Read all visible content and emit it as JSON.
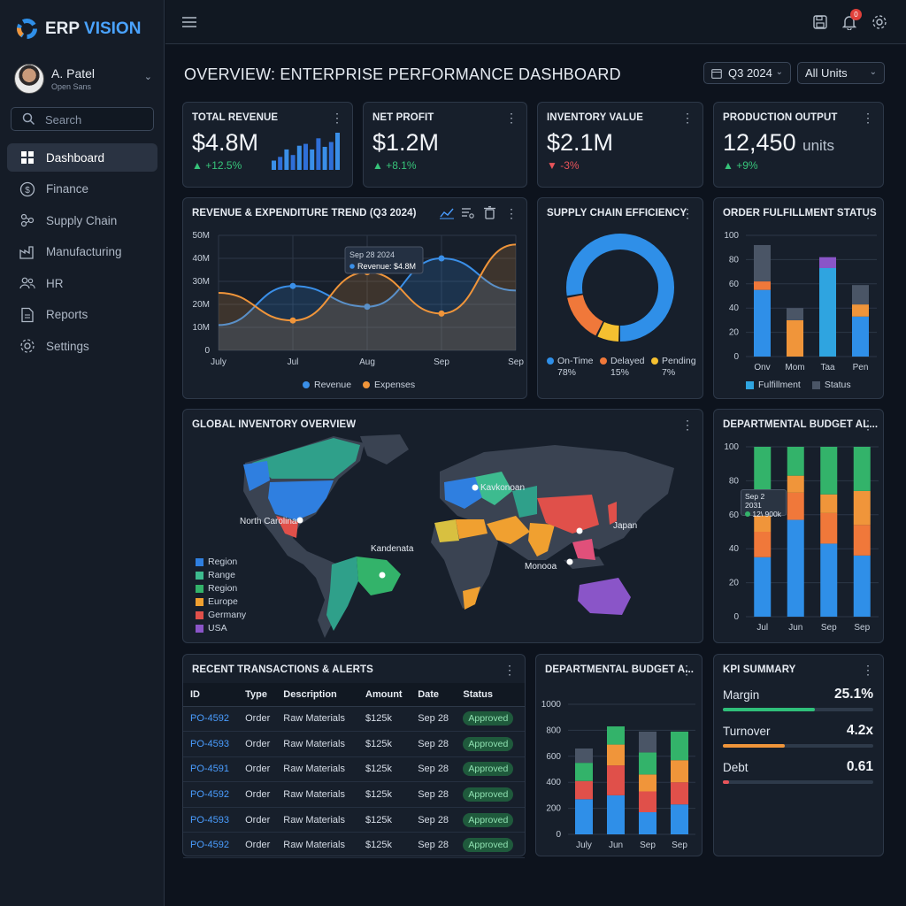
{
  "app": {
    "name_a": "ERP",
    "name_b": "VISION"
  },
  "user": {
    "name": "A. Patel",
    "subtitle": "Open Sans"
  },
  "search": {
    "placeholder": "Search"
  },
  "nav": [
    {
      "label": "Dashboard",
      "icon": "grid-icon",
      "active": true
    },
    {
      "label": "Finance",
      "icon": "dollar-icon",
      "active": false
    },
    {
      "label": "Supply Chain",
      "icon": "network-icon",
      "active": false
    },
    {
      "label": "Manufacturing",
      "icon": "factory-icon",
      "active": false
    },
    {
      "label": "HR",
      "icon": "people-icon",
      "active": false
    },
    {
      "label": "Reports",
      "icon": "document-icon",
      "active": false
    },
    {
      "label": "Settings",
      "icon": "gear-icon",
      "active": false
    }
  ],
  "topbar": {
    "notification_count": "0"
  },
  "page": {
    "title": "OVERVIEW: ENTERPRISE PERFORMANCE DASHBOARD",
    "period": "Q3 2024",
    "units": "All Units"
  },
  "kpis": [
    {
      "title": "TOTAL REVENUE",
      "value": "$4.8M",
      "unit": "",
      "delta": "▲ +12.5%",
      "dir": "up"
    },
    {
      "title": "NET PROFIT",
      "value": "$1.2M",
      "unit": "",
      "delta": "▲ +8.1%",
      "dir": "up"
    },
    {
      "title": "INVENTORY VALUE",
      "value": "$2.1M",
      "unit": "",
      "delta": "▼ -3%",
      "dir": "down"
    },
    {
      "title": "PRODUCTION OUTPUT",
      "value": "12,450",
      "unit": "units",
      "delta": "▲ +9%",
      "dir": "up"
    }
  ],
  "revenue_card": {
    "title": "REVENUE & EXPENDITURE TREND (Q3 2024)",
    "tooltip_date": "Sep 28 2024",
    "tooltip_value": "Revenue: $4.8M"
  },
  "supply_card": {
    "title": "SUPPLY CHAIN EFFICIENCY"
  },
  "order_card": {
    "title": "ORDER FULFILLMENT STATUS"
  },
  "map_card": {
    "title": "GLOBAL INVENTORY OVERVIEW",
    "labels": [
      "North Carolina",
      "Kandenata",
      "Kavkonoan",
      "Japan",
      "Monooa"
    ],
    "legend": [
      {
        "name": "Region",
        "color": "#2f7fe0"
      },
      {
        "name": "Range",
        "color": "#3dbb8f"
      },
      {
        "name": "Region",
        "color": "#33b36a"
      },
      {
        "name": "Europe",
        "color": "#f0a030"
      },
      {
        "name": "Germany",
        "color": "#e0504a"
      },
      {
        "name": "USA",
        "color": "#8a55c8"
      }
    ]
  },
  "budget_card1": {
    "title": "DEPARTMENTAL BUDGET AL...",
    "tooltip_date": "Sep 2 2031",
    "tooltip_value": "12\\ 900k"
  },
  "tx_card": {
    "title": "RECENT TRANSACTIONS & ALERTS",
    "headers": [
      "ID",
      "Type",
      "Description",
      "Amount",
      "Date",
      "Status"
    ],
    "rows": [
      [
        "PO-4592",
        "Order",
        "Raw Materials",
        "$125k",
        "Sep 28",
        "Approved"
      ],
      [
        "PO-4593",
        "Order",
        "Raw Materials",
        "$125k",
        "Sep 28",
        "Approved"
      ],
      [
        "PO-4591",
        "Order",
        "Raw Materials",
        "$125k",
        "Sep 28",
        "Approved"
      ],
      [
        "PO-4592",
        "Order",
        "Raw Materials",
        "$125k",
        "Sep 28",
        "Approved"
      ],
      [
        "PO-4593",
        "Order",
        "Raw Materials",
        "$125k",
        "Sep 28",
        "Approved"
      ],
      [
        "PO-4592",
        "Order",
        "Raw Materials",
        "$125k",
        "Sep 28",
        "Approved"
      ]
    ]
  },
  "budget_card2": {
    "title": "DEPARTMENTAL BUDGET A..."
  },
  "kpi_summary": {
    "title": "KPI SUMMARY",
    "items": [
      {
        "label": "Margin",
        "value": "25.1%",
        "fill": 0.61,
        "color": "#2fbf7a"
      },
      {
        "label": "Turnover",
        "value": "4.2x",
        "fill": 0.41,
        "color": "#f0953a"
      },
      {
        "label": "Debt",
        "value": "0.61",
        "fill": 0.04,
        "color": "#e8545a"
      }
    ]
  },
  "chart_data": [
    {
      "id": "revenue",
      "type": "line",
      "title": "REVENUE & EXPENDITURE TREND (Q3 2024)",
      "categories": [
        "July",
        "Jul",
        "Aug",
        "Sep",
        "Sep"
      ],
      "ylim": [
        0,
        50
      ],
      "yticks": [
        "0",
        "10M",
        "20M",
        "30M",
        "40M",
        "50M"
      ],
      "series": [
        {
          "name": "Revenue",
          "color": "#3a8fe8",
          "values": [
            11,
            28,
            19,
            40,
            26
          ]
        },
        {
          "name": "Expenses",
          "color": "#f0953a",
          "values": [
            25,
            13,
            34,
            16,
            46
          ]
        }
      ]
    },
    {
      "id": "supply",
      "type": "pie",
      "title": "SUPPLY CHAIN EFFICIENCY",
      "slices": [
        {
          "name": "On-Time",
          "value": 78,
          "label": "78%",
          "color": "#2f8fe8"
        },
        {
          "name": "Delayed",
          "value": 15,
          "label": "15%",
          "color": "#f0783a"
        },
        {
          "name": "Pending",
          "value": 7,
          "label": "7%",
          "color": "#f5c030"
        }
      ]
    },
    {
      "id": "orders",
      "type": "bar",
      "title": "ORDER FULFILLMENT STATUS",
      "categories": [
        "Onv",
        "Mom",
        "Taa",
        "Pen"
      ],
      "ylim": [
        0,
        100
      ],
      "yticks": [
        "0",
        "20",
        "40",
        "60",
        "80",
        "100"
      ],
      "series": [
        {
          "name": "Fulfillment",
          "values": [
            55,
            30,
            73,
            33
          ],
          "colors": [
            "#2f8fe8",
            "#f0953a",
            "#2fa4e0",
            "#2f8fe8"
          ]
        },
        {
          "name": "",
          "values": [
            7,
            0,
            0,
            10
          ],
          "colors": [
            "#f0783a",
            "#f0783a",
            "#f0783a",
            "#f0953a"
          ]
        },
        {
          "name": "Status",
          "values": [
            30,
            10,
            9,
            16
          ],
          "colors": [
            "#4a5566",
            "#4a5566",
            "#8a55c8",
            "#4a5566"
          ]
        }
      ],
      "legend": [
        {
          "name": "Fulfillment",
          "color": "#2fa4e0"
        },
        {
          "name": "Status",
          "color": "#4a5566"
        }
      ]
    },
    {
      "id": "budget1",
      "type": "bar",
      "title": "DEPARTMENTAL BUDGET AL...",
      "categories": [
        "Jul",
        "Jun",
        "Sep",
        "Sep"
      ],
      "ylim": [
        0,
        100
      ],
      "yticks": [
        "0",
        "20",
        "40",
        "60",
        "80",
        "100"
      ],
      "series": [
        {
          "name": "",
          "color": "#2f8fe8",
          "values": [
            35,
            57,
            43,
            36
          ]
        },
        {
          "name": "",
          "color": "#f0783a",
          "values": [
            15,
            16,
            18,
            18
          ]
        },
        {
          "name": "",
          "color": "#f0953a",
          "values": [
            17,
            10,
            11,
            20
          ]
        },
        {
          "name": "",
          "color": "#33b36a",
          "values": [
            33,
            17,
            28,
            26
          ]
        }
      ]
    },
    {
      "id": "budget2",
      "type": "bar",
      "title": "DEPARTMENTAL BUDGET A...",
      "categories": [
        "July",
        "Jun",
        "Sep",
        "Sep"
      ],
      "ylim": [
        0,
        1000
      ],
      "yticks": [
        "0",
        "200",
        "400",
        "600",
        "800",
        "1000"
      ],
      "series": [
        {
          "name": "",
          "color": "#2f8fe8",
          "values": [
            270,
            300,
            170,
            230
          ]
        },
        {
          "name": "",
          "color": "#e0504a",
          "values": [
            140,
            230,
            160,
            170
          ]
        },
        {
          "name": "",
          "color": "#f0953a",
          "values": [
            0,
            160,
            130,
            170
          ]
        },
        {
          "name": "",
          "color": "#33b36a",
          "values": [
            140,
            140,
            170,
            220
          ]
        },
        {
          "name": "",
          "color": "#4a5566",
          "values": [
            110,
            0,
            160,
            0
          ]
        }
      ]
    }
  ]
}
